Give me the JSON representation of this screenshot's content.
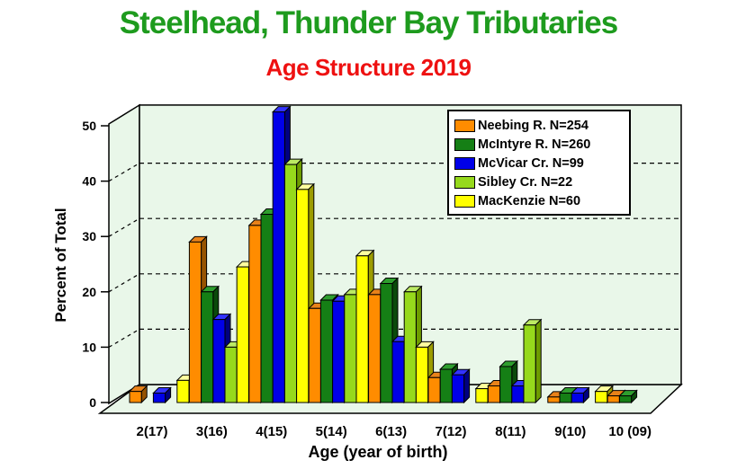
{
  "title": {
    "text": "Steelhead, Thunder Bay Tributaries",
    "color": "#1E9B1E"
  },
  "subtitle": {
    "text": "Age Structure 2019",
    "color": "#EE1111"
  },
  "axes": {
    "y_title": "Percent of Total",
    "x_title": "Age (year of birth)"
  },
  "colors": {
    "plot_bg": "#E9F7E9",
    "axis_line": "#000000",
    "page_bg": "#FFFFFF"
  },
  "chart_data": {
    "type": "bar",
    "title": "Age Structure 2019",
    "xlabel": "Age (year of birth)",
    "ylabel": "Percent of Total",
    "ylim": [
      0,
      50
    ],
    "yticks": [
      0,
      10,
      20,
      30,
      40,
      50
    ],
    "grid": "horizontal dashed lines at 10,20,30,40 on back wall",
    "legend_position": "upper right inside plot area",
    "style": "pseudo-3d grouped bars on pale green walls",
    "categories": [
      "2(17)",
      "3(16)",
      "4(15)",
      "5(14)",
      "6(13)",
      "7(12)",
      "8(11)",
      "9(10)",
      "10 (09)"
    ],
    "series": [
      {
        "name": "Neebing R. N=254",
        "color": "#FF8C00",
        "side": "#965300",
        "top": "#E8821A",
        "values": [
          2,
          29,
          32,
          17,
          19.5,
          4.5,
          3,
          1,
          1.2
        ]
      },
      {
        "name": "McIntyre R. N=260",
        "color": "#157F15",
        "side": "#0A4A0A",
        "top": "#2E9E2E",
        "values": [
          0,
          20,
          34,
          18.5,
          21.5,
          6,
          6.5,
          1.7,
          1.2
        ]
      },
      {
        "name": "McVicar Cr. N=99",
        "color": "#0000E8",
        "side": "#000080",
        "top": "#3333FF",
        "values": [
          1.7,
          15,
          52.5,
          18.3,
          11,
          5,
          3,
          1.7,
          0
        ]
      },
      {
        "name": "Sibley Cr. N=22",
        "color": "#96D91C",
        "side": "#6E9C00",
        "top": "#BCEA64",
        "values": [
          0,
          10,
          43,
          19.5,
          20,
          0,
          14,
          0,
          0
        ]
      },
      {
        "name": "MacKenzie N=60",
        "color": "#FFFF00",
        "side": "#9C9C00",
        "top": "#FFFF9E",
        "values": [
          4,
          24.5,
          38.5,
          26.5,
          10,
          2.5,
          0,
          2,
          0
        ]
      }
    ]
  }
}
